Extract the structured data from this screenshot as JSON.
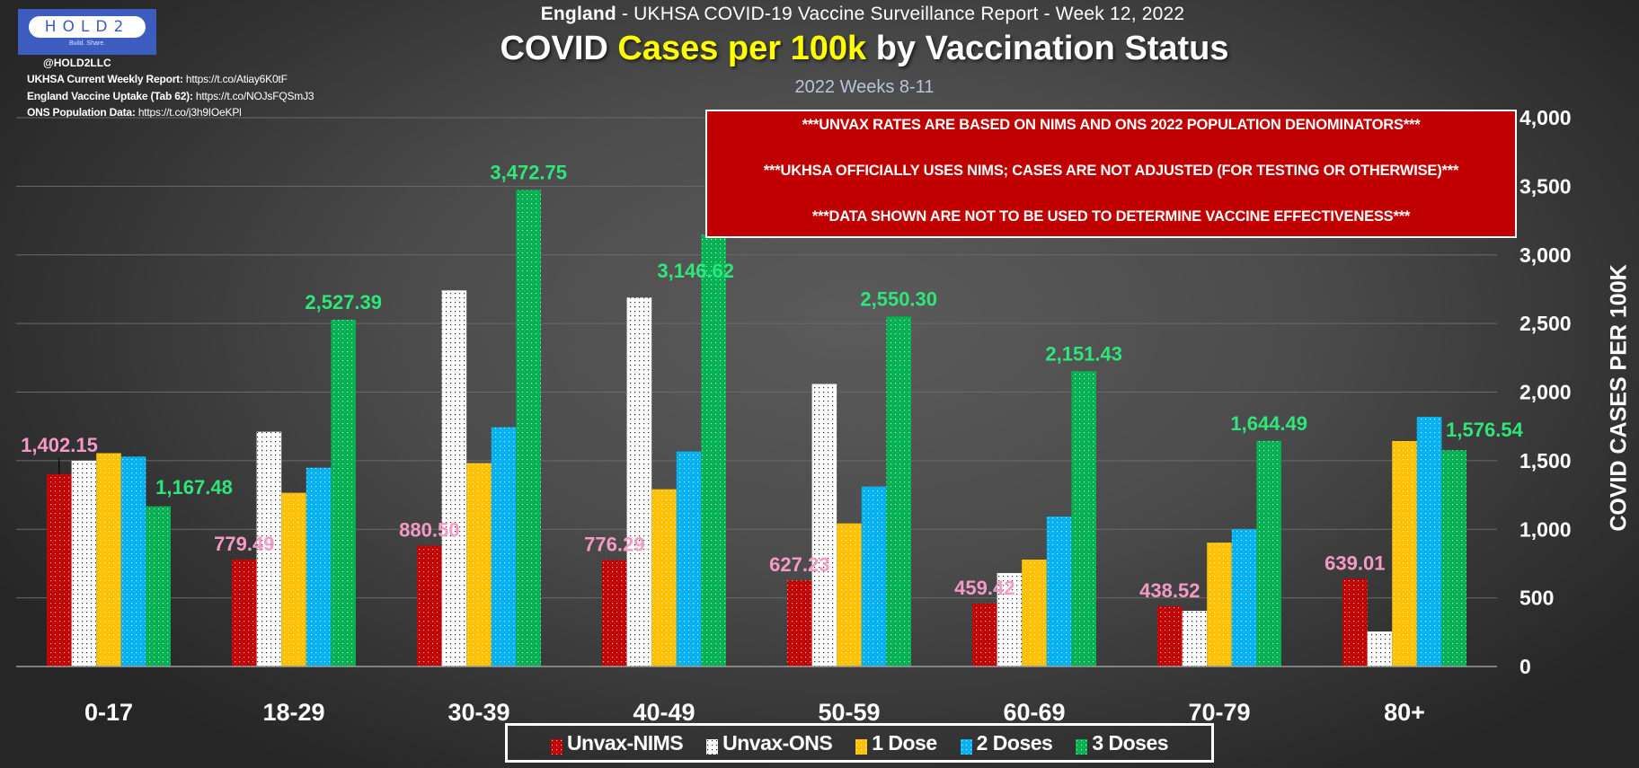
{
  "branding": {
    "logo_text": "HOLD2",
    "logo_tagline": "Build. Share.",
    "handle": "@HOLD2LLC",
    "sources": [
      {
        "label": "UKHSA Current Weekly Report:",
        "url": "https://t.co/Atiay6K0tF"
      },
      {
        "label": "England Vaccine Uptake (Tab 62):",
        "url": "https://t.co/NOJsFQSmJ3"
      },
      {
        "label": "ONS Population Data:",
        "url": "https://t.co/j3h9IOeKPl"
      }
    ]
  },
  "header": {
    "suptitle_bold": "England",
    "suptitle_rest": " - UKHSA COVID-19 Vaccine Surveillance Report - Week 12, 2022",
    "title_part1": "COVID ",
    "title_highlight": "Cases per 100k",
    "title_part2": " by Vaccination Status",
    "subtitle": "2022 Weeks 8-11"
  },
  "notice": {
    "lines": [
      "***UNVAX RATES ARE BASED ON NIMS AND ONS 2022 POPULATION DENOMINATORS***",
      "***UKHSA OFFICIALLY USES NIMS; CASES ARE NOT ADJUSTED (FOR TESTING OR OTHERWISE)***",
      "***DATA SHOWN ARE NOT TO BE USED TO DETERMINE VACCINE EFFECTIVENESS***"
    ],
    "background": "#c00000"
  },
  "colors": {
    "highlight": "#ffff00",
    "unvax_label": "#f59ac6",
    "dose3_label": "#2ee67a"
  },
  "chart_data": {
    "type": "bar",
    "title": "COVID Cases per 100k by Vaccination Status",
    "xlabel": "",
    "ylabel": "COVID CASES PER 100K",
    "ylim": [
      0,
      4000
    ],
    "yticks": [
      0,
      500,
      1000,
      1500,
      2000,
      2500,
      3000,
      3500,
      4000
    ],
    "ytick_labels": [
      "0",
      "500",
      "1,000",
      "1,500",
      "2,000",
      "2,500",
      "3,000",
      "3,500",
      "4,000"
    ],
    "grid": true,
    "legend_position": "bottom",
    "categories": [
      "0-17",
      "18-29",
      "30-39",
      "40-49",
      "50-59",
      "60-69",
      "70-79",
      "80+"
    ],
    "series": [
      {
        "name": "Unvax-NIMS",
        "color": "#c00000",
        "values": [
          1402.15,
          779.49,
          880.5,
          776.29,
          627.23,
          459.42,
          438.52,
          639.01
        ],
        "labels": [
          "1,402.15",
          "779.49",
          "880.50",
          "776.29",
          "627.23",
          "459.42",
          "438.52",
          "639.01"
        ]
      },
      {
        "name": "Unvax-ONS",
        "color": "#ffffff",
        "values": [
          1500,
          1711,
          2741,
          2689,
          2059,
          681,
          406,
          255
        ]
      },
      {
        "name": "1 Dose",
        "color": "#ffc000",
        "values": [
          1555,
          1266,
          1482,
          1292,
          1043,
          779,
          903,
          1643
        ]
      },
      {
        "name": "2 Doses",
        "color": "#00b0f0",
        "values": [
          1530,
          1449,
          1744,
          1567,
          1311,
          1093,
          1002,
          1820
        ]
      },
      {
        "name": "3 Doses",
        "color": "#00b050",
        "values": [
          1167.48,
          2527.39,
          3472.75,
          3146.62,
          2550.3,
          2151.43,
          1644.49,
          1576.54
        ],
        "labels": [
          "1,167.48",
          "2,527.39",
          "3,472.75",
          "3,146.62",
          "2,550.30",
          "2,151.43",
          "1,644.49",
          "1,576.54"
        ]
      }
    ]
  }
}
